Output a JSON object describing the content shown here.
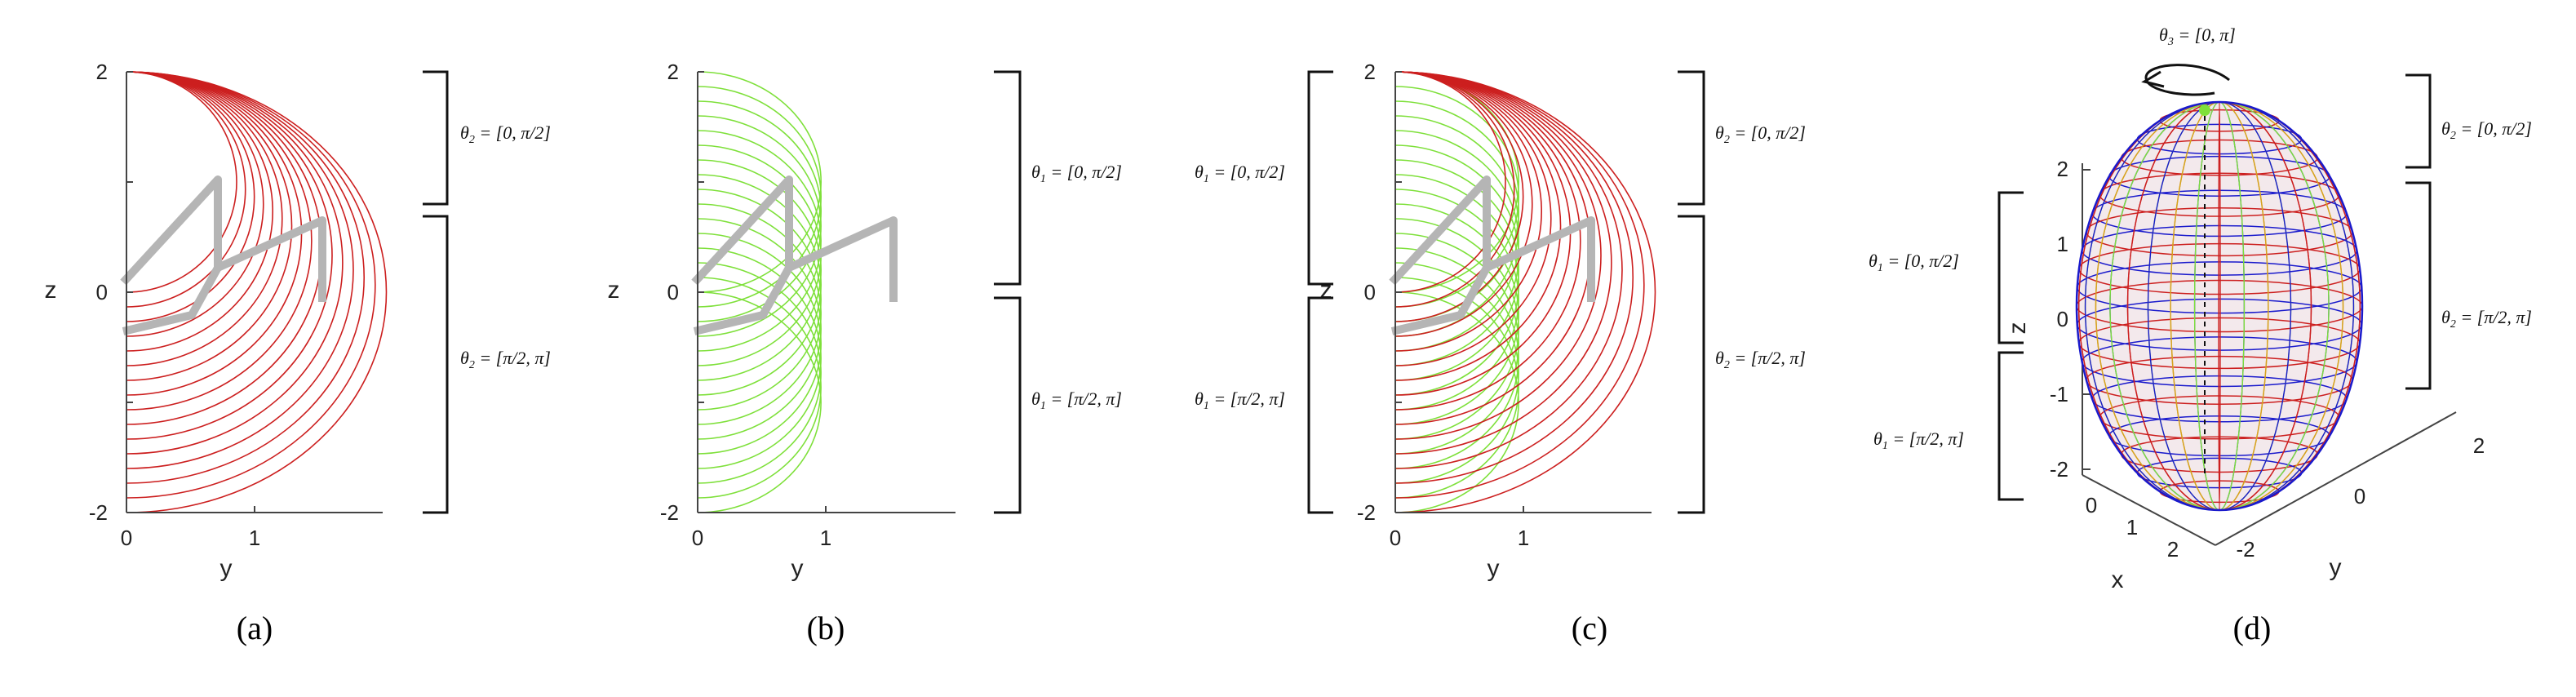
{
  "chart_data": [
    {
      "type": "line",
      "caption": "(a)",
      "xlabel": "y",
      "ylabel": "z",
      "xticks": [
        "0",
        "1"
      ],
      "yticks": [
        "2",
        "0",
        "-2"
      ],
      "xlim": [
        0,
        2
      ],
      "ylim": [
        -2,
        2
      ],
      "series": [
        {
          "color": "#cc1f1f",
          "values": [
            0.0,
            0.0667,
            0.1333,
            0.2,
            0.2667,
            0.3333,
            0.4,
            0.4667,
            0.5333,
            0.6,
            0.6667,
            0.7333,
            0.8,
            0.8667,
            0.9333,
            1.0
          ]
        }
      ],
      "annotations": [
        {
          "text": "θ2 = [0, π/2]"
        },
        {
          "text": "θ2 = [π/2, π]"
        }
      ]
    },
    {
      "type": "line",
      "caption": "(b)",
      "xlabel": "y",
      "ylabel": "z",
      "xticks": [
        "0",
        "1"
      ],
      "yticks": [
        "2",
        "0",
        "-2"
      ],
      "xlim": [
        0,
        2
      ],
      "ylim": [
        -2,
        2
      ],
      "series": [
        {
          "color": "#7ee03a",
          "values": [
            0.0,
            0.0667,
            0.1333,
            0.2,
            0.2667,
            0.3333,
            0.4,
            0.4667,
            0.5333,
            0.6,
            0.6667,
            0.7333,
            0.8,
            0.8667,
            0.9333,
            1.0
          ]
        }
      ],
      "annotations": [
        {
          "text": "θ1 = [0, π/2]"
        },
        {
          "text": "θ1 = [π/2, π]"
        }
      ]
    },
    {
      "type": "line",
      "caption": "(c)",
      "xlabel": "y",
      "ylabel": "z",
      "xticks": [
        "0",
        "1"
      ],
      "yticks": [
        "2",
        "0",
        "-2"
      ],
      "xlim": [
        0,
        2
      ],
      "ylim": [
        -2,
        2
      ],
      "series": [
        {
          "color": "#7ee03a",
          "values": [
            0.0,
            0.0667,
            0.1333,
            0.2,
            0.2667,
            0.3333,
            0.4,
            0.4667,
            0.5333,
            0.6,
            0.6667,
            0.7333,
            0.8,
            0.8667,
            0.9333,
            1.0
          ]
        },
        {
          "color": "#cc1f1f",
          "values": [
            0.0,
            0.0667,
            0.1333,
            0.2,
            0.2667,
            0.3333,
            0.4,
            0.4667,
            0.5333,
            0.6,
            0.6667,
            0.7333,
            0.8,
            0.8667,
            0.9333,
            1.0
          ]
        }
      ],
      "annotations": [
        {
          "text": "θ1 = [0, π/2]"
        },
        {
          "text": "θ1 = [π/2, π]"
        },
        {
          "text": "θ2 = [0, π/2]"
        },
        {
          "text": "θ2 = [π/2, π]"
        }
      ]
    },
    {
      "type": "scatter",
      "caption": "(d)",
      "xlabel": "x",
      "ylabel": "y",
      "zlabel": "z",
      "xticks": [
        "0",
        "1",
        "2"
      ],
      "yticks": [
        "-2",
        "0",
        "2"
      ],
      "zticks": [
        "2",
        "1",
        "0",
        "-1",
        "-2"
      ],
      "colors": [
        "#1a1acc",
        "#cc1f1f",
        "#7ee03a",
        "#d6a21e",
        "#222222"
      ],
      "annotations": [
        {
          "text": "θ3 = [0, π]"
        },
        {
          "text": "θ1 = [0, π/2]"
        },
        {
          "text": "θ1 = [π/2, π]"
        },
        {
          "text": "θ2 = [0, π/2]"
        },
        {
          "text": "θ2 = [π/2, π]"
        }
      ]
    }
  ],
  "labels": {
    "a": {
      "caption": "(a)",
      "xlabel": "y",
      "ylabel": "z",
      "xt0": "0",
      "xt1": "1",
      "ytTop": "2",
      "ytMid": "0",
      "ytBot": "-2",
      "ann1": "θ2 = [0, π/2]",
      "ann2": "θ2 = [π/2, π]"
    },
    "b": {
      "caption": "(b)",
      "xlabel": "y",
      "ylabel": "z",
      "xt0": "0",
      "xt1": "1",
      "ytTop": "2",
      "ytMid": "0",
      "ytBot": "-2",
      "ann1": "θ1 = [0, π/2]",
      "ann2": "θ1 = [π/2, π]"
    },
    "c": {
      "caption": "(c)",
      "xlabel": "y",
      "ylabel": "z",
      "xt0": "0",
      "xt1": "1",
      "ytTop": "2",
      "ytMid": "0",
      "ytBot": "-2",
      "annL1": "θ1 = [0, π/2]",
      "annL2": "θ1 = [π/2, π]",
      "annR1": "θ2 = [0, π/2]",
      "annR2": "θ2 = [π/2, π]"
    },
    "d": {
      "caption": "(d)",
      "xlabel": "x",
      "ylabel": "y",
      "zlabel": "z",
      "zt2": "2",
      "zt1": "1",
      "zt0": "0",
      "ztm1": "-1",
      "ztm2": "-2",
      "xt0": "0",
      "xt1": "1",
      "xt2": "2",
      "yt_m2": "-2",
      "yt0": "0",
      "yt2": "2",
      "top": "θ3 = [0, π]",
      "l1": "θ1 = [0, π/2]",
      "l2": "θ1 = [π/2, π]",
      "r1": "θ2 = [0, π/2]",
      "r2": "θ2 = [π/2, π]"
    }
  }
}
